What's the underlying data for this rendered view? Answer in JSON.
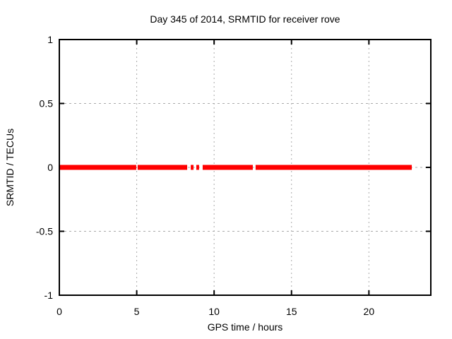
{
  "window": {
    "background": "#ffffff"
  },
  "chart_data": {
    "type": "line",
    "title": "Day 345 of 2014, SRMTID for receiver rove",
    "xlabel": "GPS time / hours",
    "ylabel": "SRMTID / TECUs",
    "xlim": [
      0,
      24
    ],
    "ylim": [
      -1,
      1
    ],
    "xticks": [
      0,
      5,
      10,
      15,
      20
    ],
    "yticks": [
      -1,
      -0.5,
      0,
      0.5,
      1
    ],
    "grid": "dotted",
    "grid_color": "#aaaaaa",
    "axis_color": "#000000",
    "legend": "none",
    "series": [
      {
        "name": "SRMTID",
        "color": "#ff0000",
        "line_width": 7,
        "y_value": 0,
        "segments_x_hours": [
          [
            0,
            4.97
          ],
          [
            5.06,
            8.26
          ],
          [
            8.49,
            8.67
          ],
          [
            8.85,
            9.03
          ],
          [
            9.26,
            12.5
          ],
          [
            12.68,
            22.77
          ]
        ]
      }
    ]
  }
}
